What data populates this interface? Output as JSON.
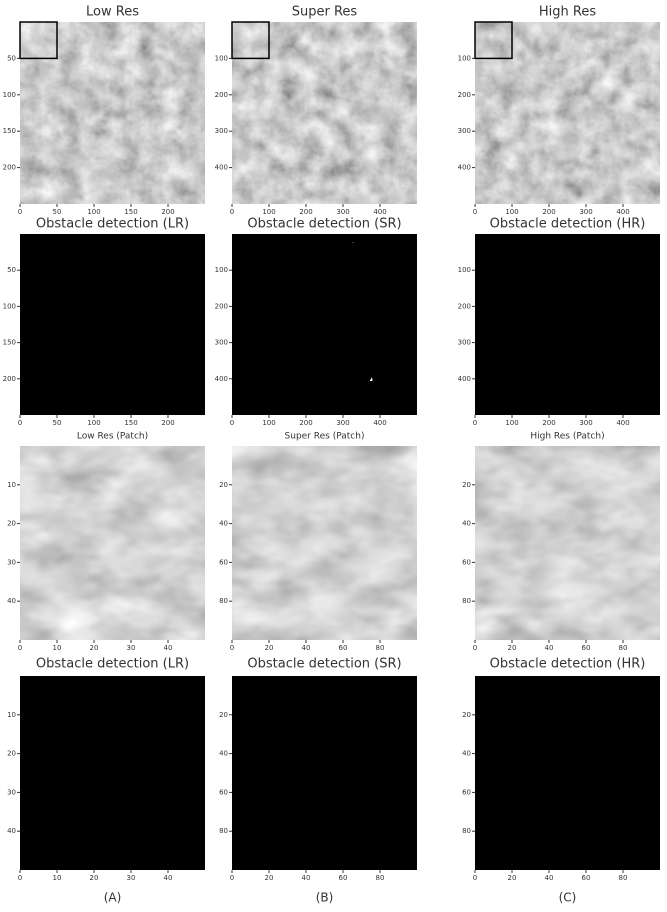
{
  "panels": [
    {
      "title": "Low Res",
      "kind": "terrain",
      "xlim": [
        0,
        250
      ],
      "ylim": [
        0,
        250
      ],
      "xticks": [
        0,
        50,
        100,
        150,
        200
      ],
      "yticks": [
        50,
        100,
        150,
        200
      ],
      "box": true
    },
    {
      "title": "Super Res",
      "kind": "terrain",
      "xlim": [
        0,
        500
      ],
      "ylim": [
        0,
        500
      ],
      "xticks": [
        0,
        100,
        200,
        300,
        400
      ],
      "yticks": [
        100,
        200,
        300,
        400
      ],
      "box": true
    },
    {
      "title": "High Res",
      "kind": "terrain",
      "xlim": [
        0,
        500
      ],
      "ylim": [
        0,
        500
      ],
      "xticks": [
        0,
        100,
        200,
        300,
        400
      ],
      "yticks": [
        100,
        200,
        300,
        400
      ],
      "box": true
    },
    {
      "title": "Obstacle detection (LR)",
      "kind": "binary",
      "xlim": [
        0,
        250
      ],
      "ylim": [
        0,
        250
      ],
      "xticks": [
        0,
        50,
        100,
        150,
        200
      ],
      "yticks": [
        50,
        100,
        150,
        200
      ]
    },
    {
      "title": "Obstacle detection (SR)",
      "kind": "binary",
      "xlim": [
        0,
        500
      ],
      "ylim": [
        0,
        500
      ],
      "xticks": [
        0,
        100,
        200,
        300,
        400
      ],
      "yticks": [
        100,
        200,
        300,
        400
      ]
    },
    {
      "title": "Obstacle detection (HR)",
      "kind": "binary",
      "xlim": [
        0,
        500
      ],
      "ylim": [
        0,
        500
      ],
      "xticks": [
        0,
        100,
        200,
        300,
        400
      ],
      "yticks": [
        100,
        200,
        300,
        400
      ]
    },
    {
      "title": "Low Res (Patch)",
      "kind": "patch",
      "xlim": [
        0,
        50
      ],
      "ylim": [
        0,
        50
      ],
      "xticks": [
        0,
        10,
        20,
        30,
        40
      ],
      "yticks": [
        10,
        20,
        30,
        40
      ]
    },
    {
      "title": "Super Res (Patch)",
      "kind": "patch",
      "xlim": [
        0,
        100
      ],
      "ylim": [
        0,
        100
      ],
      "xticks": [
        0,
        20,
        40,
        60,
        80
      ],
      "yticks": [
        20,
        40,
        60,
        80
      ]
    },
    {
      "title": "High Res (Patch)",
      "kind": "patch",
      "xlim": [
        0,
        100
      ],
      "ylim": [
        0,
        100
      ],
      "xticks": [
        0,
        20,
        40,
        60,
        80
      ],
      "yticks": [
        20,
        40,
        60,
        80
      ]
    },
    {
      "title": "Obstacle detection (LR)",
      "kind": "sparse",
      "xlim": [
        0,
        50
      ],
      "ylim": [
        0,
        50
      ],
      "xticks": [
        0,
        10,
        20,
        30,
        40
      ],
      "yticks": [
        10,
        20,
        30,
        40
      ]
    },
    {
      "title": "Obstacle detection (SR)",
      "kind": "sparse",
      "xlim": [
        0,
        100
      ],
      "ylim": [
        0,
        100
      ],
      "xticks": [
        0,
        20,
        40,
        60,
        80
      ],
      "yticks": [
        20,
        40,
        60,
        80
      ]
    },
    {
      "title": "Obstacle detection (HR)",
      "kind": "sparse",
      "xlim": [
        0,
        100
      ],
      "ylim": [
        0,
        100
      ],
      "xticks": [
        0,
        20,
        40,
        60,
        80
      ],
      "yticks": [
        20,
        40,
        60,
        80
      ]
    }
  ],
  "column_labels": [
    "(A)",
    "(B)",
    "(C)"
  ]
}
